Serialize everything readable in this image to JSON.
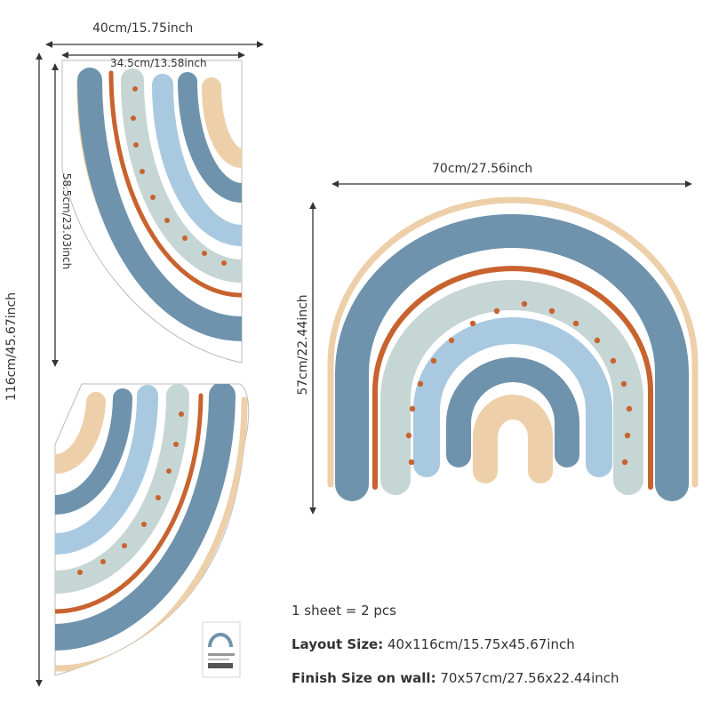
{
  "dimensions": {
    "sheet_width": "40cm/15.75inch",
    "inner_width": "34.5cm/13.58inch",
    "inner_height": "58.5cm/23.03inch",
    "sheet_height": "116cm/45.67inch",
    "finish_width": "70cm/27.56inch",
    "finish_height": "57cm/22.44inch"
  },
  "info": {
    "line1": "1 sheet = 2 pcs",
    "line2_label": "Layout Size:",
    "line2_value": "40x116cm/15.75x45.67inch",
    "line3_label": "Finish Size on wall:",
    "line3_value": "70x57cm/27.56x22.44inch"
  },
  "colors": {
    "steel_blue": "#6f93ad",
    "light_blue": "#a9c9e0",
    "sage": "#c6d6d4",
    "rust": "#c8632f",
    "peach": "#edcfa9",
    "line": "#333333"
  }
}
